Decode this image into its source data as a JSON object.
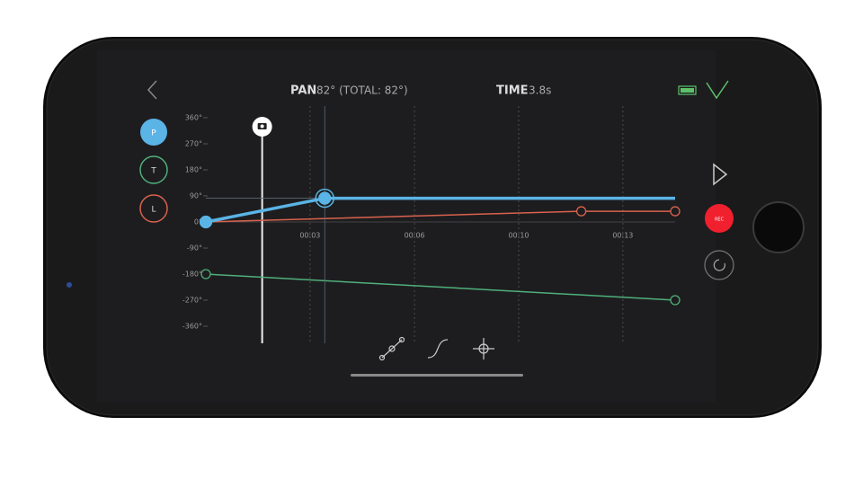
{
  "header": {
    "pan_label": "PAN",
    "pan_value": "82° (TOTAL: 82°)",
    "time_label": "TIME",
    "time_value": "3.8s"
  },
  "axis_buttons": [
    "P",
    "T",
    "L"
  ],
  "record_button": "REC",
  "chart_data": {
    "type": "line",
    "xlim": [
      0,
      15
    ],
    "ylim": [
      -360,
      360
    ],
    "xticks": [
      {
        "value": 3.33,
        "label": "00:03"
      },
      {
        "value": 6.67,
        "label": "00:06"
      },
      {
        "value": 10,
        "label": "00:10"
      },
      {
        "value": 13.33,
        "label": "00:13"
      }
    ],
    "yticks": [
      {
        "value": 360,
        "label": "360°"
      },
      {
        "value": 270,
        "label": "270°"
      },
      {
        "value": 180,
        "label": "180°"
      },
      {
        "value": 90,
        "label": "90°"
      },
      {
        "value": 0,
        "label": "0°"
      },
      {
        "value": -90,
        "label": "-90°"
      },
      {
        "value": -180,
        "label": "-180°"
      },
      {
        "value": -270,
        "label": "-270°"
      },
      {
        "value": -360,
        "label": "-360°"
      }
    ],
    "playhead": 1.8,
    "series": [
      {
        "name": "P",
        "color": "#5ab4e6",
        "x": [
          0,
          3.8,
          15
        ],
        "values": [
          0,
          82,
          82
        ]
      },
      {
        "name": "L",
        "color": "#d9624e",
        "x": [
          0,
          12,
          15
        ],
        "values": [
          0,
          37,
          37
        ]
      },
      {
        "name": "T",
        "color": "#4fb07a",
        "x": [
          0,
          15
        ],
        "values": [
          -180,
          -270
        ]
      }
    ]
  }
}
